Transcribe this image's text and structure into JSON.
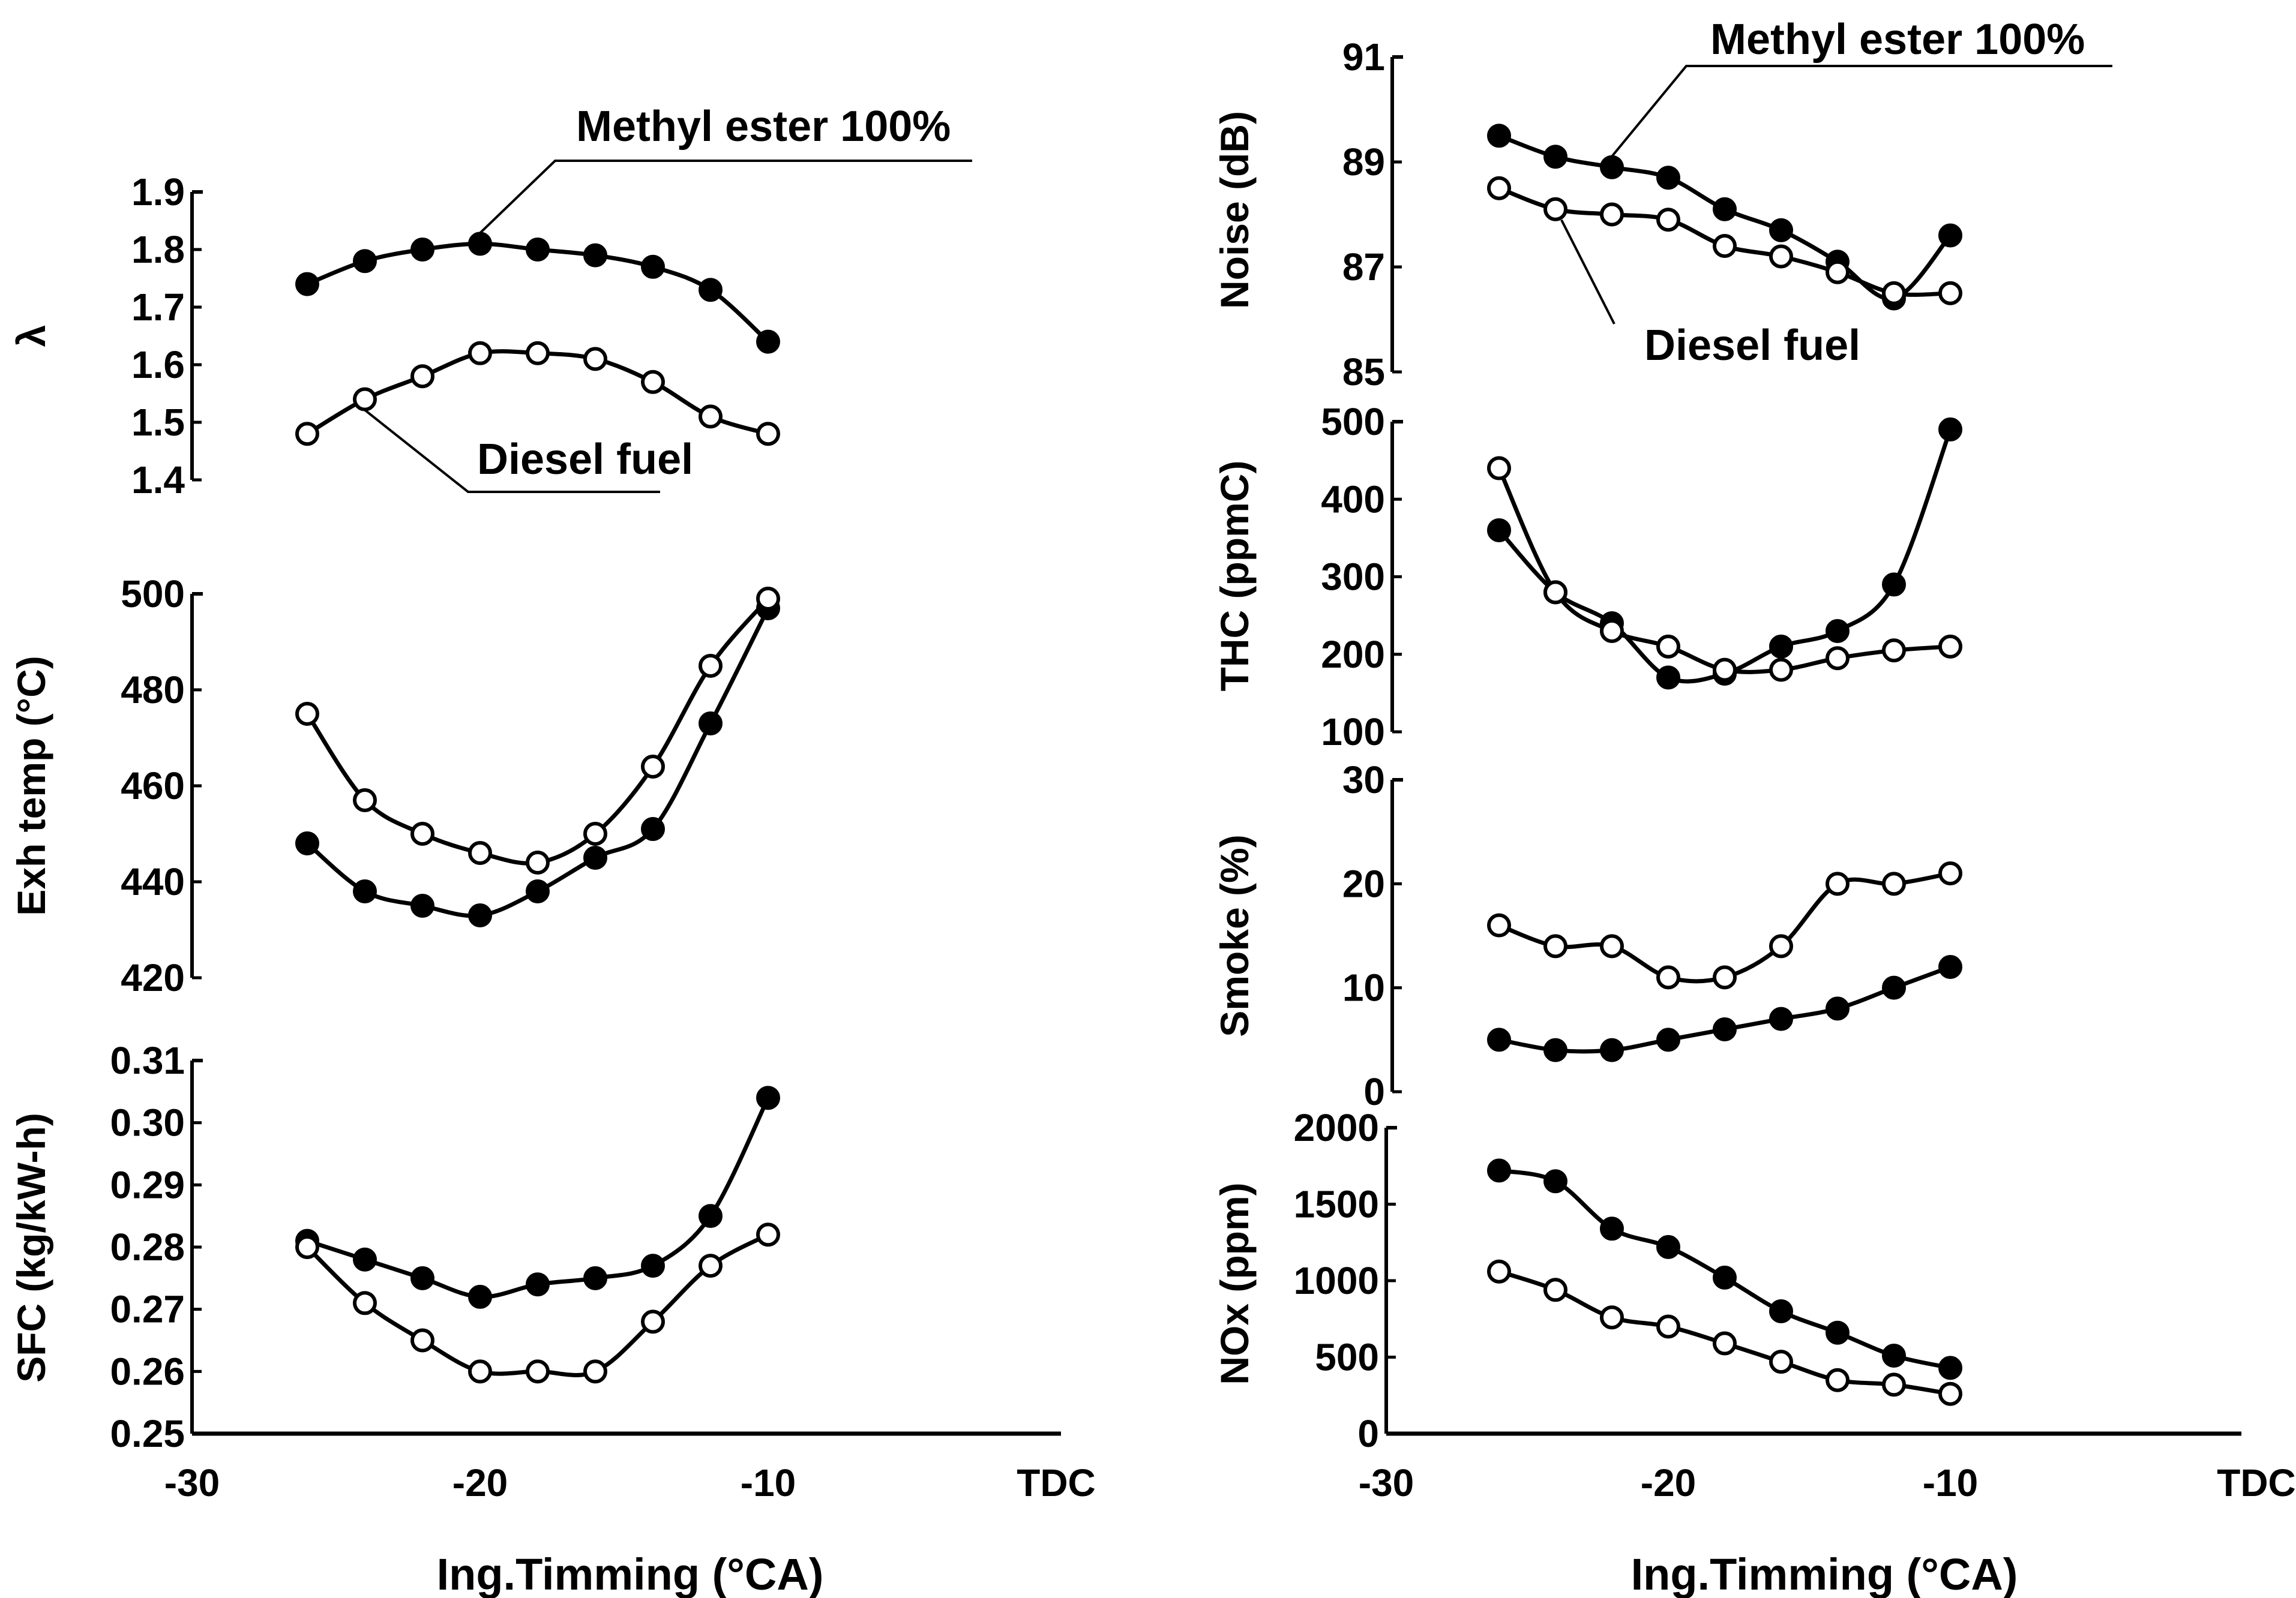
{
  "figure": {
    "x_axis_title": "Ing.Timming (°CA)",
    "tdc_label": "TDC",
    "legend": {
      "methyl": "Methyl ester 100%",
      "diesel": "Diesel fuel"
    }
  },
  "chart_data": [
    {
      "type": "line",
      "ylabel": "λ",
      "x": [
        -26,
        -24,
        -22,
        -20,
        -18,
        -16,
        -14,
        -12,
        -10
      ],
      "xticks": [
        "-30",
        "-20",
        "-10"
      ],
      "xlim": [
        -30,
        0
      ],
      "yticks": [
        "1.4",
        "1.5",
        "1.6",
        "1.7",
        "1.8",
        "1.9"
      ],
      "ylim": [
        1.4,
        1.9
      ],
      "legend_labels": {
        "methyl": "Methyl ester 100%",
        "diesel": "Diesel fuel"
      },
      "series": [
        {
          "name": "Methyl ester 100%",
          "marker": "filled",
          "values": [
            1.74,
            1.78,
            1.8,
            1.81,
            1.8,
            1.79,
            1.77,
            1.73,
            1.64
          ]
        },
        {
          "name": "Diesel fuel",
          "marker": "open",
          "values": [
            1.48,
            1.54,
            1.58,
            1.62,
            1.62,
            1.61,
            1.57,
            1.51,
            1.48
          ]
        }
      ]
    },
    {
      "type": "line",
      "ylabel": "Exh temp (°C)",
      "x": [
        -26,
        -24,
        -22,
        -20,
        -18,
        -16,
        -14,
        -12,
        -10
      ],
      "xticks": [
        "-30",
        "-20",
        "-10"
      ],
      "xlim": [
        -30,
        0
      ],
      "yticks": [
        "420",
        "440",
        "460",
        "480",
        "500"
      ],
      "ylim": [
        420,
        500
      ],
      "series": [
        {
          "name": "",
          "marker": "filled",
          "values": [
            448,
            438,
            435,
            433,
            438,
            445,
            451,
            473,
            497
          ]
        },
        {
          "name": "",
          "marker": "open",
          "values": [
            475,
            457,
            450,
            446,
            444,
            450,
            464,
            485,
            499
          ]
        }
      ]
    },
    {
      "type": "line",
      "ylabel": "SFC (kg/kW-h)",
      "x": [
        -26,
        -24,
        -22,
        -20,
        -18,
        -16,
        -14,
        -12,
        -10
      ],
      "xticks": [
        "-30",
        "-20",
        "-10"
      ],
      "xlim": [
        -30,
        0
      ],
      "yticks": [
        "0.25",
        "0.26",
        "0.27",
        "0.28",
        "0.29",
        "0.30",
        "0.31"
      ],
      "ylim": [
        0.25,
        0.31
      ],
      "series": [
        {
          "name": "",
          "marker": "filled",
          "values": [
            0.281,
            0.278,
            0.275,
            0.272,
            0.274,
            0.275,
            0.277,
            0.285,
            0.304
          ]
        },
        {
          "name": "",
          "marker": "open",
          "values": [
            0.28,
            0.271,
            0.265,
            0.26,
            0.26,
            0.26,
            0.268,
            0.277,
            0.282
          ]
        }
      ]
    },
    {
      "type": "line",
      "ylabel": "Noise (dB)",
      "x": [
        -26,
        -24,
        -22,
        -20,
        -18,
        -16,
        -14,
        -12,
        -10
      ],
      "xticks": [
        "-30",
        "-20",
        "-10"
      ],
      "xlim": [
        -30,
        0
      ],
      "yticks": [
        "85",
        "87",
        "89",
        "91"
      ],
      "ylim": [
        85,
        91
      ],
      "legend_labels": {
        "methyl": "Methyl ester 100%",
        "diesel": "Diesel fuel"
      },
      "series": [
        {
          "name": "Methyl ester 100%",
          "marker": "filled",
          "values": [
            89.5,
            89.1,
            88.9,
            88.7,
            88.1,
            87.7,
            87.1,
            86.4,
            87.6
          ]
        },
        {
          "name": "Diesel fuel",
          "marker": "open",
          "values": [
            88.5,
            88.1,
            88.0,
            87.9,
            87.4,
            87.2,
            86.9,
            86.5,
            86.5
          ]
        }
      ]
    },
    {
      "type": "line",
      "ylabel": "THC (ppmC)",
      "x": [
        -26,
        -24,
        -22,
        -20,
        -18,
        -16,
        -14,
        -12,
        -10
      ],
      "xticks": [
        "-30",
        "-20",
        "-10"
      ],
      "xlim": [
        -30,
        0
      ],
      "yticks": [
        "100",
        "200",
        "300",
        "400",
        "500"
      ],
      "ylim": [
        100,
        500
      ],
      "series": [
        {
          "name": "",
          "marker": "filled",
          "values": [
            360,
            280,
            240,
            170,
            175,
            210,
            230,
            290,
            490
          ]
        },
        {
          "name": "",
          "marker": "open",
          "values": [
            440,
            280,
            230,
            210,
            180,
            180,
            195,
            205,
            210
          ]
        }
      ]
    },
    {
      "type": "line",
      "ylabel": "Smoke (%)",
      "x": [
        -26,
        -24,
        -22,
        -20,
        -18,
        -16,
        -14,
        -12,
        -10
      ],
      "xticks": [
        "-30",
        "-20",
        "-10"
      ],
      "xlim": [
        -30,
        0
      ],
      "yticks": [
        "0",
        "10",
        "20",
        "30"
      ],
      "ylim": [
        0,
        30
      ],
      "series": [
        {
          "name": "",
          "marker": "filled",
          "values": [
            5,
            4,
            4,
            5,
            6,
            7,
            8,
            10,
            12
          ]
        },
        {
          "name": "",
          "marker": "open",
          "values": [
            16,
            14,
            14,
            11,
            11,
            14,
            20,
            20,
            21
          ]
        }
      ]
    },
    {
      "type": "line",
      "ylabel": "NOx (ppm)",
      "x": [
        -26,
        -24,
        -22,
        -20,
        -18,
        -16,
        -14,
        -12,
        -10
      ],
      "xticks": [
        "-30",
        "-20",
        "-10"
      ],
      "xlim": [
        -30,
        0
      ],
      "yticks": [
        "0",
        "500",
        "1000",
        "1500",
        "2000"
      ],
      "ylim": [
        0,
        2000
      ],
      "series": [
        {
          "name": "",
          "marker": "filled",
          "values": [
            1720,
            1650,
            1340,
            1220,
            1020,
            800,
            660,
            510,
            430
          ]
        },
        {
          "name": "",
          "marker": "open",
          "values": [
            1060,
            940,
            760,
            700,
            590,
            470,
            350,
            320,
            260
          ]
        }
      ]
    }
  ]
}
